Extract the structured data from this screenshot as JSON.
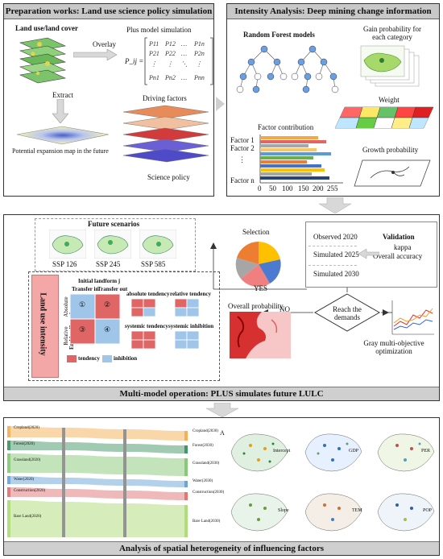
{
  "prep": {
    "title": "Preparation works: Land use science policy simulation",
    "land_cover": "Land use/land cover",
    "overlay": "Overlay",
    "plus_model": "Plus model simulation",
    "matrix_lhs": "P_ij =",
    "extract": "Extract",
    "driving_factors": "Driving factors",
    "potential_map": "Potential expansion map in the future",
    "science_policy": "Science policy"
  },
  "intensity": {
    "title": "Intensity Analysis: Deep mining change information",
    "rf_models": "Random Forest models",
    "gain_prob": "Gain probability for each category",
    "weight": "Weight",
    "factor_contribution": "Factor  contribution",
    "factor_labels": [
      "Factor 1",
      "Factor 2",
      "Factor n"
    ],
    "axis_ticks": [
      "0",
      "50",
      "100",
      "150",
      "200",
      "255"
    ],
    "growth_prob": "Growth probability"
  },
  "multi": {
    "title": "Multi-model operation: PLUS simulates future LULC",
    "future_scenarios": "Future scenarios",
    "ssp": [
      "SSP 126",
      "SSP 245",
      "SSP 585"
    ],
    "land_use_intensity": "Land use intensity",
    "initial_landform": "Initial landform j",
    "transfer_in": "Transfer in",
    "transfer_out": "Transfer out",
    "end_landform": "End landform i",
    "absolute": "Absolute",
    "relative": "Relative",
    "cells": [
      "①",
      "②",
      "③",
      "④"
    ],
    "absolute_tendency": "absolute tendency",
    "relative_tendency": "relative tendency",
    "systemic_tendency": "systemic tendency",
    "systemic_inhibition": "systemic inhibition",
    "legend_tendency": "tendency",
    "legend_inhibition": "inhibition",
    "selection": "Selection",
    "yes": "YES",
    "no": "NO",
    "overall_probability": "Overall probability",
    "observed_2020": "Observed 2020",
    "simulated_2025": "Simulated 2025",
    "simulated_2030": "Simulated 2030",
    "validation": "Validation",
    "kappa": "kappa",
    "overall_accuracy": "Overall accuracy",
    "reach_demands": "Reach the demands",
    "gray_opt": "Gray multi-objective optimization"
  },
  "spatial": {
    "title": "Analysis of spatial heterogeneity of influencing factors",
    "panel_letter": "A",
    "map_titles": [
      "Intercept",
      "GDP",
      "PER",
      "Slope",
      "TEM",
      "POP"
    ],
    "sankey_left": [
      "Cropland(2020)",
      "Forest(2020)",
      "Grassland(2020)",
      "Water(2020)",
      "Construction(2020)",
      "Bare Land(2020)"
    ],
    "sankey_right": [
      "Cropland(2030)",
      "Forest(2030)",
      "Grassland(2030)",
      "Water(2030)",
      "Construction(2030)",
      "Bare Land(2030)"
    ]
  },
  "colors": {
    "header_gray": "#c8c8c8",
    "tendency": "#e06666",
    "inhibition": "#9fc5e8",
    "pink_bar": "#f4a7a7"
  }
}
